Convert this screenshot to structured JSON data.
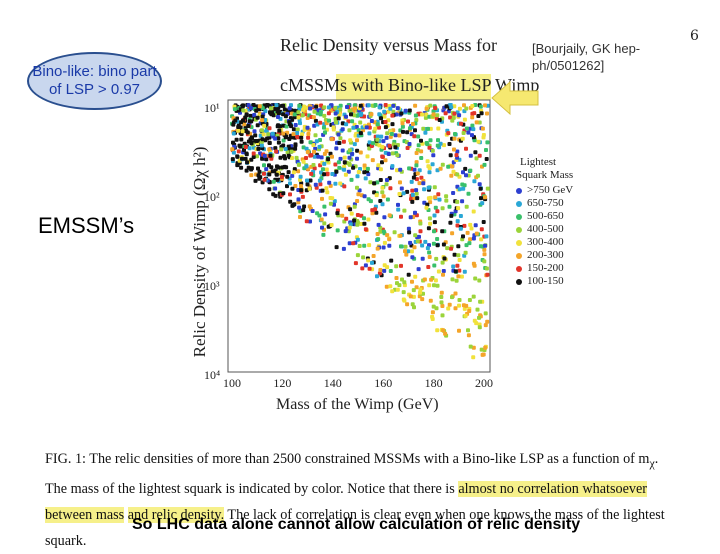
{
  "page_number": "6",
  "callout": {
    "line1": "Bino-like: bino part",
    "line2": "of LSP > 0.97"
  },
  "citation": "[Bourjaily, GK hep-ph/0501262]",
  "side_label": "EMSSM’s",
  "figure": {
    "title_line1": "Relic Density versus Mass for",
    "title_line2_prefix": "cMSSMs with ",
    "title_line2_highlight": "Bino-like LSP Wimp",
    "ylabel": "Relic Density of Wimp (Ωχ h²)",
    "xlabel": "Mass of the Wimp (GeV)",
    "y_ticks": [
      "10¹",
      "10²",
      "10³",
      "10⁴"
    ],
    "x_ticks": [
      "100",
      "120",
      "140",
      "160",
      "180",
      "200"
    ],
    "legend_title_1": "Lightest",
    "legend_title_2": "Squark Mass",
    "legend_items": [
      {
        "label": ">750 GeV",
        "color": "#2d3fd0"
      },
      {
        "label": "650-750",
        "color": "#2aa7d6"
      },
      {
        "label": "500-650",
        "color": "#39c06a"
      },
      {
        "label": "400-500",
        "color": "#9bd43a"
      },
      {
        "label": "300-400",
        "color": "#f1e23c"
      },
      {
        "label": "200-300",
        "color": "#f4a52a"
      },
      {
        "label": "150-200",
        "color": "#e2352a"
      },
      {
        "label": "100-150",
        "color": "#111111"
      }
    ]
  },
  "caption": {
    "part1": "FIG. 1: The relic densities of more than 2500 constrained MSSMs with a Bino-like LSP as a function of m",
    "subscript": "χ",
    "part2": ". The mass of the lightest squark is indicated by color. Notice that there is ",
    "highlight1": "almost no correlation whatsoever between mass",
    "highlight2": "and relic density.",
    "part3": " The lack of correlation is clear even when one knows the mass of the lightest squark."
  },
  "conclusion": "So LHC data alone cannot allow calculation of relic density"
}
